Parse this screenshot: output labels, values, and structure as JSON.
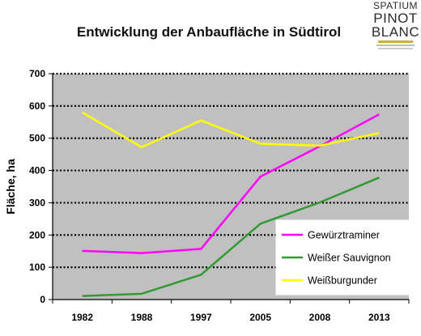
{
  "logo": {
    "line1": "SPATIUM",
    "line2": "PINOT",
    "line3": "BLANC"
  },
  "chart_data": {
    "type": "line",
    "title": "Entwicklung der Anbaufläche in Südtirol",
    "ylabel": "Fläche, ha",
    "xlabel": "",
    "categories": [
      "1982",
      "1988",
      "1997",
      "2005",
      "2008",
      "2013"
    ],
    "ylim": [
      0,
      700
    ],
    "yticks": [
      0,
      100,
      200,
      300,
      400,
      500,
      600,
      700
    ],
    "grid": "horizontal dotted",
    "legend_position": "bottom-right",
    "background_color": "#c0c0c0",
    "series": [
      {
        "name": "Gewürztraminer",
        "color": "#ff00ff",
        "values": [
          151,
          144,
          157,
          381,
          475,
          574
        ]
      },
      {
        "name": "Weißer Sauvignon",
        "color": "#339933",
        "values": [
          11,
          18,
          77,
          235,
          301,
          378
        ]
      },
      {
        "name": "Weißburgunder",
        "color": "#ffff00",
        "values": [
          580,
          472,
          555,
          483,
          477,
          516
        ]
      }
    ]
  }
}
